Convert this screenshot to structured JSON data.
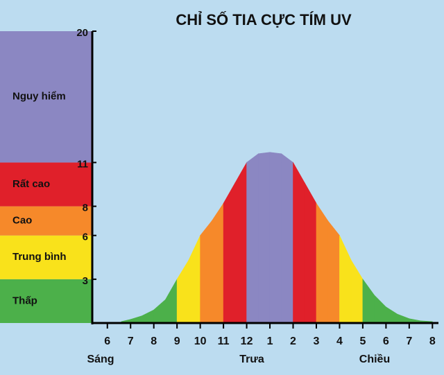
{
  "chart_data": {
    "type": "uv-curve",
    "title": "CHỈ SỐ TIA CỰC TÍM UV",
    "ylim": [
      0,
      20
    ],
    "yticks": [
      3,
      6,
      8,
      11,
      20
    ],
    "levels": [
      {
        "name": "Thấp",
        "color": "#4cb04a"
      },
      {
        "name": "Trung bình",
        "color": "#f9e21b"
      },
      {
        "name": "Cao",
        "color": "#f6892a"
      },
      {
        "name": "Rất cao",
        "color": "#e0202a"
      },
      {
        "name": "Nguy hiểm",
        "color": "#8b87c2"
      }
    ],
    "xlim": [
      5.35,
      20.05
    ],
    "xticks": [
      6,
      7,
      8,
      9,
      10,
      11,
      12,
      {
        "value": 13,
        "label": "1"
      },
      {
        "value": 14,
        "label": "2"
      },
      {
        "value": 15,
        "label": "3"
      },
      {
        "value": 16,
        "label": "4"
      },
      {
        "value": 17,
        "label": "5"
      },
      {
        "value": 18,
        "label": "6"
      },
      {
        "value": 19,
        "label": "7"
      },
      {
        "value": 20,
        "label": "8"
      }
    ],
    "periods": [
      "Sáng",
      "Trưa",
      "Chiều"
    ],
    "x": [
      6.6,
      7,
      7.5,
      8,
      8.5,
      9,
      9.5,
      10,
      10.5,
      11,
      11.5,
      12,
      12.5,
      13,
      13.5,
      14,
      14.5,
      15,
      15.5,
      16,
      16.5,
      17,
      17.5,
      18,
      18.5,
      19,
      19.5,
      20
    ],
    "values": [
      0.1,
      0.25,
      0.5,
      0.9,
      1.6,
      3,
      4.3,
      6,
      7,
      8.2,
      9.6,
      11,
      11.6,
      11.7,
      11.6,
      11,
      9.6,
      8.2,
      7,
      6,
      4.3,
      3,
      1.9,
      1.1,
      0.6,
      0.3,
      0.15,
      0.1
    ]
  }
}
